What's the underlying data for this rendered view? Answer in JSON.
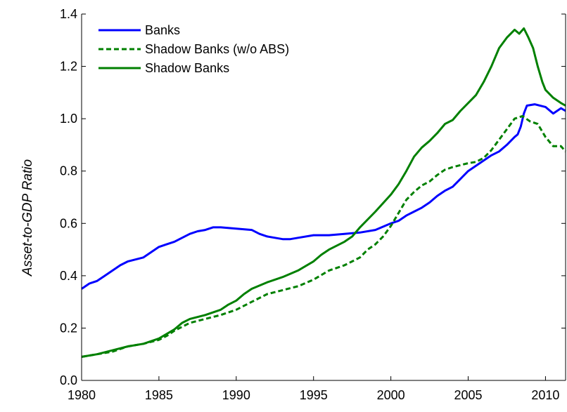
{
  "chart_data": {
    "type": "line",
    "title": "",
    "xlabel": "",
    "ylabel": "Asset-to-GDP Ratio",
    "xlim": [
      1980,
      2011.3
    ],
    "ylim": [
      0,
      1.4
    ],
    "x_ticks": [
      1980,
      1985,
      1990,
      1995,
      2000,
      2005,
      2010
    ],
    "y_ticks": [
      "0.0",
      "0.2",
      "0.4",
      "0.6",
      "0.8",
      "1.0",
      "1.2",
      "1.4"
    ],
    "grid": false,
    "legend_position": "top-left",
    "series": [
      {
        "name": "Banks",
        "color": "#0000ff",
        "style": "solid",
        "x": [
          1980,
          1980.5,
          1981,
          1981.5,
          1982,
          1982.5,
          1983,
          1984,
          1984.5,
          1985,
          1985.5,
          1986,
          1986.5,
          1987,
          1987.5,
          1988,
          1988.5,
          1989,
          1990,
          1991,
          1991.5,
          1992,
          1992.5,
          1993,
          1993.5,
          1994,
          1995,
          1996,
          1997,
          1998,
          1999,
          2000,
          2000.5,
          2001,
          2001.5,
          2002,
          2002.5,
          2003,
          2003.5,
          2004,
          2004.5,
          2005,
          2005.5,
          2006,
          2006.5,
          2007,
          2007.5,
          2008,
          2008.2,
          2008.4,
          2008.6,
          2008.8,
          2009.3,
          2010,
          2010.5,
          2011,
          2011.3
        ],
        "y": [
          0.35,
          0.37,
          0.38,
          0.4,
          0.42,
          0.44,
          0.455,
          0.47,
          0.49,
          0.51,
          0.52,
          0.53,
          0.545,
          0.56,
          0.57,
          0.575,
          0.585,
          0.585,
          0.58,
          0.575,
          0.56,
          0.55,
          0.545,
          0.54,
          0.54,
          0.545,
          0.555,
          0.555,
          0.56,
          0.565,
          0.575,
          0.6,
          0.61,
          0.63,
          0.645,
          0.66,
          0.68,
          0.705,
          0.725,
          0.74,
          0.77,
          0.8,
          0.82,
          0.84,
          0.86,
          0.875,
          0.9,
          0.93,
          0.94,
          0.97,
          1.02,
          1.05,
          1.055,
          1.045,
          1.02,
          1.04,
          1.03
        ]
      },
      {
        "name": "Shadow Banks (w/o ABS)",
        "color": "#008000",
        "style": "dashed",
        "x": [
          1980,
          1981,
          1982,
          1983,
          1984,
          1985,
          1985.5,
          1986,
          1986.5,
          1987,
          1988,
          1989,
          1990,
          1990.5,
          1991,
          1992,
          1993,
          1994,
          1995,
          1996,
          1997,
          1997.5,
          1998,
          1998.5,
          1999,
          1999.5,
          2000,
          2000.5,
          2001,
          2001.5,
          2002,
          2002.5,
          2003,
          2003.5,
          2004,
          2005,
          2005.5,
          2006,
          2006.5,
          2007,
          2007.5,
          2008,
          2008.5,
          2009,
          2009.5,
          2010,
          2010.5,
          2011,
          2011.3
        ],
        "y": [
          0.09,
          0.1,
          0.11,
          0.13,
          0.14,
          0.155,
          0.17,
          0.19,
          0.205,
          0.22,
          0.235,
          0.25,
          0.27,
          0.285,
          0.3,
          0.33,
          0.345,
          0.36,
          0.385,
          0.42,
          0.44,
          0.455,
          0.47,
          0.5,
          0.52,
          0.55,
          0.59,
          0.64,
          0.69,
          0.72,
          0.745,
          0.76,
          0.785,
          0.805,
          0.815,
          0.83,
          0.835,
          0.85,
          0.88,
          0.92,
          0.96,
          1.0,
          1.01,
          0.99,
          0.98,
          0.93,
          0.895,
          0.895,
          0.875
        ]
      },
      {
        "name": "Shadow Banks",
        "color": "#008000",
        "style": "solid",
        "x": [
          1980,
          1981,
          1982,
          1983,
          1984,
          1985,
          1986,
          1986.5,
          1987,
          1988,
          1989,
          1989.5,
          1990,
          1990.5,
          1991,
          1992,
          1993,
          1994,
          1995,
          1995.5,
          1996,
          1997,
          1997.5,
          1998,
          1999,
          2000,
          2000.5,
          2001,
          2001.5,
          2002,
          2002.5,
          2003,
          2003.5,
          2004,
          2004.5,
          2005,
          2005.5,
          2006,
          2006.5,
          2007,
          2007.5,
          2008,
          2008.3,
          2008.6,
          2008.9,
          2009.2,
          2009.5,
          2009.8,
          2010,
          2010.5,
          2011,
          2011.3
        ],
        "y": [
          0.09,
          0.1,
          0.115,
          0.13,
          0.14,
          0.16,
          0.195,
          0.22,
          0.235,
          0.25,
          0.27,
          0.29,
          0.305,
          0.33,
          0.35,
          0.375,
          0.395,
          0.42,
          0.455,
          0.48,
          0.5,
          0.53,
          0.55,
          0.585,
          0.645,
          0.71,
          0.75,
          0.8,
          0.855,
          0.89,
          0.915,
          0.945,
          0.98,
          0.995,
          1.03,
          1.06,
          1.09,
          1.14,
          1.2,
          1.27,
          1.31,
          1.34,
          1.325,
          1.345,
          1.31,
          1.27,
          1.2,
          1.14,
          1.11,
          1.08,
          1.06,
          1.05
        ]
      }
    ]
  }
}
